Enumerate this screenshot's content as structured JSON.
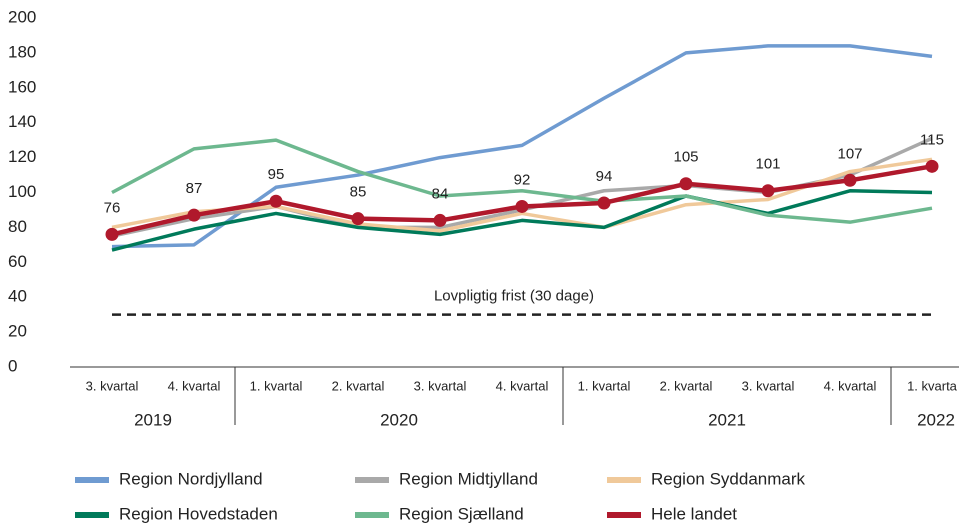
{
  "chart_data": {
    "type": "line",
    "categories": [
      "3. kvartal",
      "4. kvartal",
      "1. kvartal",
      "2. kvartal",
      "3. kvartal",
      "4. kvartal",
      "1. kvartal",
      "2. kvartal",
      "3. kvartal",
      "4. kvartal",
      "1. kvarta"
    ],
    "category_groups": [
      {
        "label": "2019",
        "count": 2
      },
      {
        "label": "2020",
        "count": 4
      },
      {
        "label": "2021",
        "count": 4
      },
      {
        "label": "2022",
        "count": 1
      }
    ],
    "series": [
      {
        "name": "Region Nordjylland",
        "color": "#6f9bd1",
        "values": [
          69,
          70,
          103,
          110,
          120,
          127,
          154,
          180,
          184,
          184,
          178
        ]
      },
      {
        "name": "Region Midtjylland",
        "color": "#a9a9a9",
        "values": [
          75,
          85,
          92,
          80,
          80,
          90,
          101,
          104,
          100,
          110,
          131
        ]
      },
      {
        "name": "Region Syddanmark",
        "color": "#f0c99a",
        "values": [
          80,
          89,
          92,
          82,
          78,
          88,
          80,
          93,
          96,
          112,
          119
        ]
      },
      {
        "name": "Region Hovedstaden",
        "color": "#007a5a",
        "values": [
          67,
          79,
          88,
          80,
          76,
          84,
          80,
          98,
          88,
          101,
          100
        ]
      },
      {
        "name": "Region Sjælland",
        "color": "#6db88f",
        "values": [
          100,
          125,
          130,
          112,
          98,
          101,
          95,
          98,
          87,
          83,
          91
        ]
      },
      {
        "name": "Hele landet",
        "color": "#b0192c",
        "values": [
          76,
          87,
          95,
          85,
          84,
          92,
          94,
          105,
          101,
          107,
          115
        ],
        "markers": true,
        "data_labels": true
      }
    ],
    "reference_line": {
      "value": 30,
      "label": "Lovpligtig frist (30 dage)"
    },
    "ylim": [
      0,
      200
    ],
    "yticks": [
      0,
      20,
      40,
      60,
      80,
      100,
      120,
      140,
      160,
      180,
      200
    ],
    "grid": false
  }
}
